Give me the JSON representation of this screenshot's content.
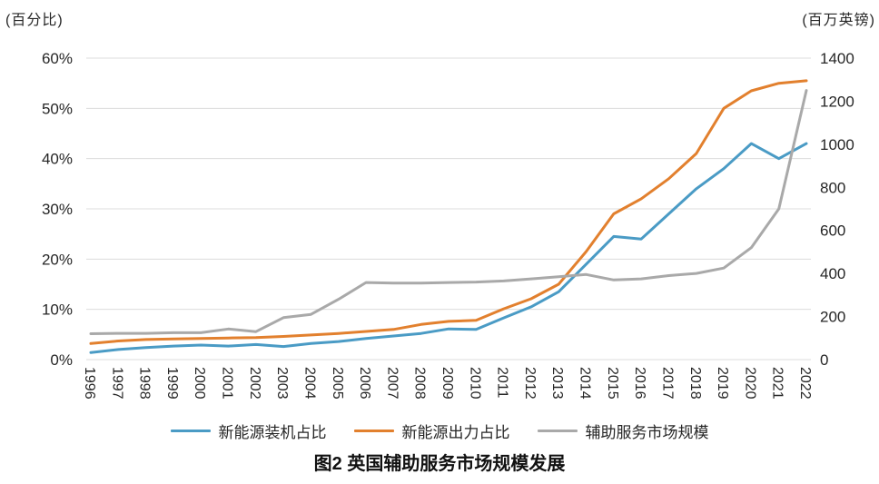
{
  "title": "图2  英国辅助服务市场规模发展",
  "units": {
    "left": "(百分比)",
    "right": "(百万英镑)"
  },
  "legend": {
    "items": [
      {
        "label": "新能源装机占比",
        "color": "#4a9bc5"
      },
      {
        "label": "新能源出力占比",
        "color": "#e2802e"
      },
      {
        "label": "辅助服务市场规模",
        "color": "#a9a9a9"
      }
    ]
  },
  "chart_data": {
    "type": "line",
    "x": [
      1996,
      1997,
      1998,
      1999,
      2000,
      2001,
      2002,
      2003,
      2004,
      2005,
      2006,
      2007,
      2008,
      2009,
      2010,
      2011,
      2012,
      2013,
      2014,
      2015,
      2016,
      2017,
      2018,
      2019,
      2020,
      2021,
      2022
    ],
    "series": [
      {
        "name": "新能源装机占比",
        "key": "installed-share",
        "axis": "left",
        "color": "#4a9bc5",
        "values": [
          1.4,
          2.0,
          2.4,
          2.7,
          2.9,
          2.7,
          3.0,
          2.6,
          3.2,
          3.6,
          4.2,
          4.7,
          5.2,
          6.1,
          6.0,
          8.3,
          10.5,
          13.5,
          19,
          24.5,
          24,
          29,
          34,
          38,
          43,
          40,
          43
        ]
      },
      {
        "name": "新能源出力占比",
        "key": "output-share",
        "axis": "left",
        "color": "#e2802e",
        "values": [
          3.2,
          3.7,
          4.0,
          4.1,
          4.2,
          4.3,
          4.4,
          4.6,
          4.9,
          5.2,
          5.6,
          6.0,
          7.0,
          7.6,
          7.8,
          10.1,
          12.1,
          15,
          21.5,
          29,
          32,
          36,
          41,
          50,
          53.5,
          55,
          55.5
        ]
      },
      {
        "name": "辅助服务市场规模",
        "key": "market-size",
        "axis": "right",
        "color": "#a9a9a9",
        "values": [
          120,
          122,
          122,
          125,
          125,
          142,
          130,
          195,
          210,
          280,
          358,
          355,
          355,
          358,
          360,
          365,
          375,
          385,
          395,
          370,
          375,
          390,
          400,
          425,
          520,
          700,
          1250
        ]
      }
    ],
    "left_axis": {
      "label": "(百分比)",
      "ticks": [
        "0%",
        "10%",
        "20%",
        "30%",
        "40%",
        "50%",
        "60%"
      ],
      "min": 0,
      "max": 60
    },
    "right_axis": {
      "label": "(百万英镑)",
      "ticks": [
        0,
        200,
        400,
        600,
        800,
        1000,
        1200,
        1400
      ],
      "min": 0,
      "max": 1400
    },
    "grid": true,
    "legend_position": "bottom"
  }
}
